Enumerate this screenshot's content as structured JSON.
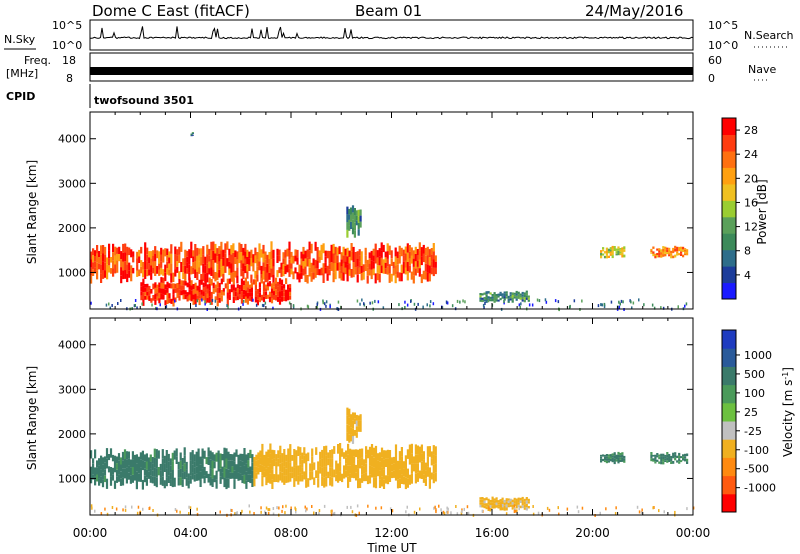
{
  "header": {
    "station": "Dome C East (fitACF)",
    "beam": "Beam 01",
    "date": "24/May/2016"
  },
  "top_panels": {
    "nsky_label": "N.Sky",
    "nsearch_label": "N.Search",
    "noise_ticks": [
      "10^5",
      "10^0"
    ],
    "freq_label_1": "Freq.",
    "freq_label_2": "[MHz]",
    "freq_ticks": [
      "18",
      "8"
    ],
    "nave_label": "Nave",
    "nave_ticks": [
      "60",
      "0"
    ],
    "cpid_label": "CPID",
    "cpid_value": "twofsound 3501"
  },
  "colorbars": {
    "power": {
      "label": "Power [dB]",
      "tick_labels": [
        "28",
        "24",
        "20",
        "16",
        "12",
        "8",
        "4"
      ],
      "colors": [
        "#1a1aff",
        "#1c3c9a",
        "#2d6d8a",
        "#3c8a5a",
        "#5aa05a",
        "#9acd32",
        "#f0c020",
        "#ffa010",
        "#ff7010",
        "#ff3c10",
        "#ff0000"
      ]
    },
    "velocity": {
      "label": "Velocity [m s",
      "label_sup": "-1",
      "label_end": "]",
      "tick_labels": [
        "1000",
        "500",
        "100",
        "25",
        "-25",
        "-100",
        "-500",
        "-1000"
      ],
      "colors": [
        "#1f3cc0",
        "#2a5a9a",
        "#3a7a6a",
        "#4a9a5a",
        "#6cc040",
        "#c0c0c0",
        "#f0b020",
        "#ff8a10",
        "#ff5a10",
        "#ff0000"
      ]
    }
  },
  "chart_data": [
    {
      "type": "heatmap",
      "title": "Power",
      "ylabel": "Slant Range [km]",
      "yticks": [
        "1000",
        "2000",
        "3000",
        "4000"
      ],
      "ylim": [
        180,
        4600
      ],
      "xlim": [
        0,
        24
      ],
      "xticks": [
        "00:00",
        "04:00",
        "08:00",
        "12:00",
        "16:00",
        "20:00",
        "00:00"
      ],
      "colorbar_range": [
        0,
        30
      ],
      "regions": [
        {
          "t0": 0.0,
          "t1": 13.8,
          "r0": 700,
          "r1": 1700,
          "value": 25
        },
        {
          "t0": 2.0,
          "t1": 8.0,
          "r0": 200,
          "r1": 900,
          "value": 27
        },
        {
          "t0": 10.2,
          "t1": 10.8,
          "r0": 1700,
          "r1": 2600,
          "value": 10
        },
        {
          "t0": 15.5,
          "t1": 17.5,
          "r0": 300,
          "r1": 600,
          "value": 10
        },
        {
          "t0": 20.3,
          "t1": 21.3,
          "r0": 1300,
          "r1": 1600,
          "value": 16
        },
        {
          "t0": 22.3,
          "t1": 23.8,
          "r0": 1300,
          "r1": 1600,
          "value": 22
        },
        {
          "t0": 4.0,
          "t1": 4.1,
          "r0": 4050,
          "r1": 4150,
          "value": 8
        }
      ]
    },
    {
      "type": "heatmap",
      "title": "Velocity",
      "ylabel": "Slant Range [km]",
      "xlabel": "Time UT",
      "yticks": [
        "1000",
        "2000",
        "3000",
        "4000"
      ],
      "ylim": [
        180,
        4600
      ],
      "xlim": [
        0,
        24
      ],
      "xticks": [
        "00:00",
        "04:00",
        "08:00",
        "12:00",
        "16:00",
        "20:00",
        "00:00"
      ],
      "colorbar_range": [
        -1000,
        1000
      ],
      "regions": [
        {
          "t0": 0.0,
          "t1": 6.5,
          "r0": 700,
          "r1": 1700,
          "value": 200
        },
        {
          "t0": 6.5,
          "t1": 13.8,
          "r0": 700,
          "r1": 1800,
          "value": -300
        },
        {
          "t0": 10.2,
          "t1": 10.8,
          "r0": 1700,
          "r1": 2600,
          "value": -200
        },
        {
          "t0": 15.5,
          "t1": 17.5,
          "r0": 250,
          "r1": 600,
          "value": -150
        },
        {
          "t0": 20.3,
          "t1": 21.3,
          "r0": 1300,
          "r1": 1600,
          "value": 150
        },
        {
          "t0": 22.3,
          "t1": 23.8,
          "r0": 1300,
          "r1": 1600,
          "value": 150
        }
      ]
    }
  ]
}
